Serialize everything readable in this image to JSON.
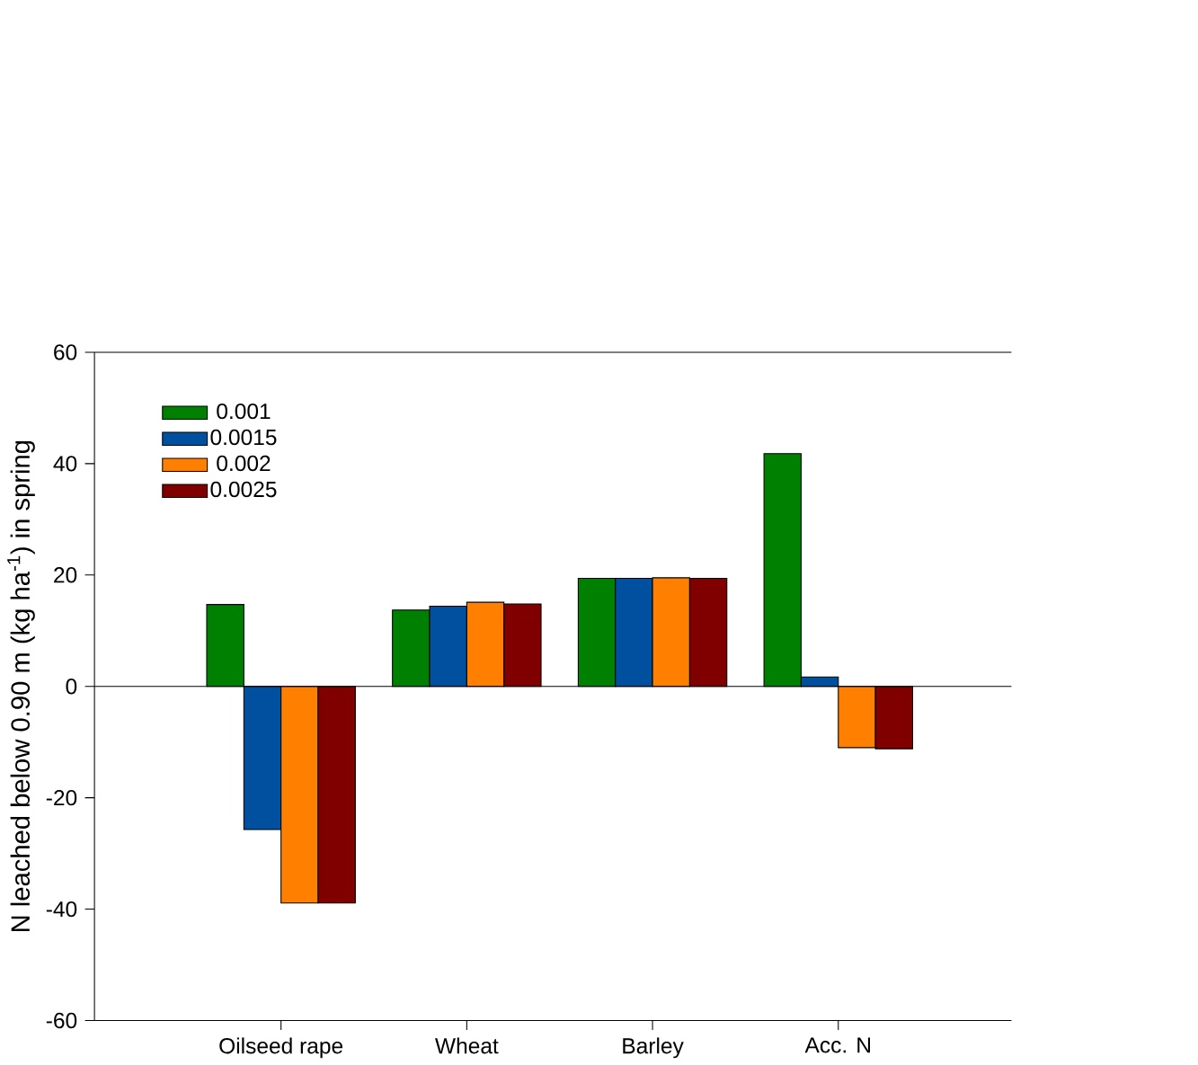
{
  "chart_data": {
    "type": "bar",
    "ylabel": "N leached below 0.90 m (kg ha$^{-1}$) in spring",
    "categories": [
      "Oilseed rape",
      "Wheat",
      "Barley",
      "Acc. N"
    ],
    "series": [
      {
        "name": "0.001",
        "color": "#008000",
        "values": [
          14.7,
          13.7,
          19.4,
          41.8
        ]
      },
      {
        "name": "0.0015",
        "color": "#0050a0",
        "values": [
          -25.7,
          14.4,
          19.4,
          1.7
        ]
      },
      {
        "name": "0.002",
        "color": "#ff8000",
        "values": [
          -38.9,
          15.1,
          19.5,
          -11.0
        ]
      },
      {
        "name": "0.0025",
        "color": "#800000",
        "values": [
          -38.9,
          14.8,
          19.4,
          -11.2
        ]
      }
    ],
    "ylim": [
      -60,
      60
    ],
    "yticks": [
      -60,
      -40,
      -20,
      0,
      20,
      40,
      60
    ],
    "ref_lines": [
      {
        "axis": "y",
        "value": 0,
        "color": "#000000"
      }
    ],
    "legend": "top left"
  }
}
